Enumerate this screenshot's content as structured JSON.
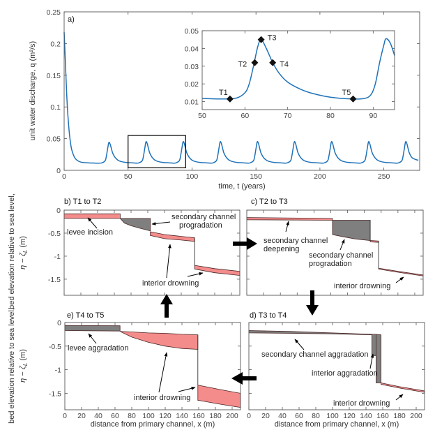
{
  "colors": {
    "series": "#1f72b8",
    "drowning_fill": "#f48c8c",
    "aggradation_fill": "#7f7f7f",
    "outline": "#4a2626",
    "arrow": "#000000"
  },
  "y_label_lower": {
    "line1": "bed elevation relative to sea level,",
    "line2": "η − ζ",
    "sub": "L",
    "unit": " (m)"
  },
  "chart_data": [
    {
      "type": "line",
      "panel": "a)",
      "xlabel": "time, t (years)",
      "ylabel": "unit water discharge, q (m²/s)",
      "xlim": [
        0,
        278
      ],
      "ylim": [
        0,
        0.25
      ],
      "grid": false,
      "xticks": [
        0,
        50,
        100,
        150,
        200,
        250
      ],
      "xticklabels": [
        "0",
        "50",
        "100",
        "150",
        "200",
        "250"
      ],
      "yticks": [
        0,
        0.05,
        0.1,
        0.15,
        0.2,
        0.25
      ],
      "yticklabels": [
        "0",
        "0.05",
        "0.1",
        "0.15",
        "0.2",
        "0.25"
      ],
      "zoom_box": {
        "x": [
          50,
          95
        ],
        "y": [
          0.004,
          0.055
        ]
      },
      "points": [
        [
          0,
          0.218
        ],
        [
          1,
          0.17
        ],
        [
          2,
          0.12
        ],
        [
          3,
          0.085
        ],
        [
          4,
          0.06
        ],
        [
          5,
          0.043
        ],
        [
          6,
          0.032
        ],
        [
          8,
          0.021
        ],
        [
          10,
          0.016
        ],
        [
          13,
          0.013
        ],
        [
          17,
          0.012
        ],
        [
          22,
          0.0115
        ],
        [
          29,
          0.0115
        ],
        [
          32,
          0.015
        ],
        [
          33,
          0.022
        ],
        [
          34,
          0.034
        ],
        [
          35,
          0.044
        ],
        [
          36,
          0.041
        ],
        [
          37,
          0.034
        ],
        [
          38,
          0.027
        ],
        [
          40,
          0.02
        ],
        [
          43,
          0.015
        ],
        [
          48,
          0.0125
        ],
        [
          55,
          0.0116
        ],
        [
          58,
          0.0115
        ],
        [
          61,
          0.015
        ],
        [
          62,
          0.022
        ],
        [
          63,
          0.034
        ],
        [
          64,
          0.045
        ],
        [
          65,
          0.042
        ],
        [
          66,
          0.034
        ],
        [
          67,
          0.027
        ],
        [
          69,
          0.02
        ],
        [
          72,
          0.015
        ],
        [
          77,
          0.0125
        ],
        [
          84,
          0.0116
        ],
        [
          87,
          0.0115
        ],
        [
          90,
          0.015
        ],
        [
          91,
          0.022
        ],
        [
          92,
          0.034
        ],
        [
          93,
          0.045
        ],
        [
          94,
          0.042
        ],
        [
          95,
          0.034
        ],
        [
          96,
          0.027
        ],
        [
          98,
          0.02
        ],
        [
          101,
          0.015
        ],
        [
          106,
          0.0125
        ],
        [
          113,
          0.0116
        ],
        [
          116,
          0.0115
        ],
        [
          119,
          0.015
        ],
        [
          120,
          0.022
        ],
        [
          121,
          0.034
        ],
        [
          122,
          0.045
        ],
        [
          123,
          0.042
        ],
        [
          124,
          0.034
        ],
        [
          125,
          0.027
        ],
        [
          127,
          0.02
        ],
        [
          130,
          0.015
        ],
        [
          135,
          0.0125
        ],
        [
          142,
          0.0116
        ],
        [
          145,
          0.0115
        ],
        [
          148,
          0.015
        ],
        [
          149,
          0.022
        ],
        [
          150,
          0.034
        ],
        [
          151,
          0.045
        ],
        [
          152,
          0.042
        ],
        [
          153,
          0.034
        ],
        [
          154,
          0.027
        ],
        [
          156,
          0.02
        ],
        [
          159,
          0.015
        ],
        [
          164,
          0.0125
        ],
        [
          171,
          0.0116
        ],
        [
          174,
          0.0115
        ],
        [
          177,
          0.015
        ],
        [
          178,
          0.022
        ],
        [
          179,
          0.034
        ],
        [
          180,
          0.045
        ],
        [
          181,
          0.042
        ],
        [
          182,
          0.034
        ],
        [
          183,
          0.027
        ],
        [
          185,
          0.02
        ],
        [
          188,
          0.015
        ],
        [
          193,
          0.0125
        ],
        [
          200,
          0.0116
        ],
        [
          203,
          0.0115
        ],
        [
          206,
          0.015
        ],
        [
          207,
          0.022
        ],
        [
          208,
          0.034
        ],
        [
          209,
          0.045
        ],
        [
          210,
          0.042
        ],
        [
          211,
          0.034
        ],
        [
          212,
          0.027
        ],
        [
          214,
          0.02
        ],
        [
          217,
          0.015
        ],
        [
          222,
          0.0125
        ],
        [
          229,
          0.0116
        ],
        [
          232,
          0.0115
        ],
        [
          235,
          0.015
        ],
        [
          236,
          0.022
        ],
        [
          237,
          0.034
        ],
        [
          238,
          0.045
        ],
        [
          239,
          0.042
        ],
        [
          240,
          0.034
        ],
        [
          241,
          0.027
        ],
        [
          243,
          0.02
        ],
        [
          246,
          0.015
        ],
        [
          251,
          0.0125
        ],
        [
          258,
          0.0116
        ],
        [
          261,
          0.0115
        ],
        [
          264,
          0.015
        ],
        [
          265,
          0.022
        ],
        [
          266,
          0.034
        ],
        [
          267,
          0.045
        ],
        [
          268,
          0.042
        ],
        [
          269,
          0.034
        ],
        [
          270,
          0.027
        ],
        [
          272,
          0.02
        ],
        [
          275,
          0.017
        ],
        [
          277,
          0.016
        ]
      ]
    },
    {
      "type": "line",
      "panel": "inset",
      "xlim": [
        50,
        95
      ],
      "ylim": [
        0.0055,
        0.05
      ],
      "grid": false,
      "xticks": [
        50,
        60,
        70,
        80,
        90
      ],
      "xticklabels": [
        "50",
        "60",
        "70",
        "80",
        "90"
      ],
      "yticks": [
        0.01,
        0.02,
        0.03,
        0.04,
        0.05
      ],
      "yticklabels": [
        "0.01",
        "0.02",
        "0.03",
        "0.04",
        "0.05"
      ],
      "points": [
        [
          50,
          0.0118
        ],
        [
          55,
          0.0115
        ],
        [
          58,
          0.012
        ],
        [
          60,
          0.015
        ],
        [
          61,
          0.02
        ],
        [
          62,
          0.03
        ],
        [
          63,
          0.041
        ],
        [
          63.8,
          0.045
        ],
        [
          65,
          0.04
        ],
        [
          66.5,
          0.032
        ],
        [
          68,
          0.026
        ],
        [
          70,
          0.021
        ],
        [
          73,
          0.017
        ],
        [
          76,
          0.0145
        ],
        [
          80,
          0.0125
        ],
        [
          85,
          0.0115
        ],
        [
          88,
          0.0118
        ],
        [
          89.5,
          0.014
        ],
        [
          90.5,
          0.02
        ],
        [
          91.5,
          0.032
        ],
        [
          92.5,
          0.042
        ],
        [
          93,
          0.0455
        ],
        [
          94,
          0.043
        ],
        [
          95,
          0.036
        ]
      ],
      "markers": [
        {
          "label": "T1",
          "x": 56.5,
          "y": 0.0115
        },
        {
          "label": "T2",
          "x": 62.3,
          "y": 0.032
        },
        {
          "label": "T3",
          "x": 63.8,
          "y": 0.045
        },
        {
          "label": "T4",
          "x": 66.5,
          "y": 0.032
        },
        {
          "label": "T5",
          "x": 85.3,
          "y": 0.0115
        }
      ]
    },
    {
      "type": "area",
      "panel": "b) T1 to T2",
      "xlim": [
        0,
        210
      ],
      "ylim": [
        -1.85,
        0
      ],
      "grid": false,
      "xticks": [
        0,
        20,
        40,
        60,
        80,
        100,
        120,
        140,
        160,
        180,
        200
      ],
      "xticklabels": [],
      "yticks": [
        0,
        -0.5,
        -1,
        -1.5
      ],
      "yticklabels": [
        "0",
        "-0.5",
        "-1",
        "-1.5"
      ],
      "fills": [
        {
          "kind": "drowning",
          "x": [
            0,
            67
          ],
          "top": [
            -0.08,
            -0.08
          ],
          "bottom": [
            -0.18,
            -0.18
          ]
        },
        {
          "kind": "aggradation",
          "x": [
            67,
            72,
            80,
            90,
            103
          ],
          "top": [
            -0.18,
            -0.18,
            -0.18,
            -0.18,
            -0.18
          ],
          "bottom": [
            -0.18,
            -0.28,
            -0.34,
            -0.39,
            -0.45
          ]
        },
        {
          "kind": "drowning",
          "x": [
            103,
            120,
            140,
            156
          ],
          "top": [
            -0.47,
            -0.53,
            -0.57,
            -0.6
          ],
          "bottom": [
            -0.55,
            -0.62,
            -0.65,
            -0.68
          ]
        },
        {
          "kind": "drowning",
          "x": [
            156,
            180,
            210
          ],
          "top": [
            -1.2,
            -1.27,
            -1.33
          ],
          "bottom": [
            -1.28,
            -1.36,
            -1.42
          ]
        }
      ],
      "lines": [
        {
          "x": [
            156,
            156
          ],
          "y": [
            -0.6,
            -1.2
          ]
        }
      ],
      "annotations": [
        "levee incision",
        "secondary channel",
        "progradation",
        "interior drowning"
      ]
    },
    {
      "type": "area",
      "panel": "c) T2 to T3",
      "xlim": [
        0,
        210
      ],
      "ylim": [
        -1.85,
        0
      ],
      "grid": false,
      "xticks": [
        0,
        20,
        40,
        60,
        80,
        100,
        120,
        140,
        160,
        180,
        200
      ],
      "xticklabels": [],
      "yticks": [
        0,
        -0.5,
        -1,
        -1.5
      ],
      "yticklabels": [],
      "fills": [
        {
          "kind": "drowning",
          "x": [
            0,
            102
          ],
          "top": [
            -0.16,
            -0.18
          ],
          "bottom": [
            -0.21,
            -0.22
          ]
        },
        {
          "kind": "aggradation",
          "x": [
            102,
            102.1,
            115,
            130,
            147
          ],
          "top": [
            -0.22,
            -0.22,
            -0.22,
            -0.22,
            -0.22
          ],
          "bottom": [
            -0.22,
            -0.53,
            -0.58,
            -0.63,
            -0.66
          ]
        },
        {
          "kind": "drowning",
          "x": [
            147,
            157
          ],
          "top": [
            -0.66,
            -0.67
          ],
          "bottom": [
            -0.69,
            -0.7
          ]
        },
        {
          "kind": "drowning",
          "x": [
            157,
            180,
            210
          ],
          "top": [
            -1.26,
            -1.33,
            -1.41
          ],
          "bottom": [
            -1.28,
            -1.35,
            -1.43
          ]
        }
      ],
      "lines": [
        {
          "x": [
            147,
            147
          ],
          "y": [
            -0.22,
            -0.66
          ]
        },
        {
          "x": [
            157,
            157
          ],
          "y": [
            -0.67,
            -1.26
          ]
        }
      ],
      "annotations": [
        "secondary channel",
        "deepening",
        "secondary channel",
        "progradation",
        "interior drowning"
      ]
    },
    {
      "type": "area",
      "panel": "e) T4 to T5",
      "xlabel": "distance from primary channel, x (m)",
      "xlim": [
        0,
        210
      ],
      "ylim": [
        -1.85,
        0
      ],
      "grid": false,
      "xticks": [
        0,
        20,
        40,
        60,
        80,
        100,
        120,
        140,
        160,
        180,
        200
      ],
      "xticklabels": [
        "0",
        "20",
        "40",
        "60",
        "80",
        "100",
        "120",
        "140",
        "160",
        "180",
        "200"
      ],
      "yticks": [
        0,
        -0.5,
        -1,
        -1.5
      ],
      "yticklabels": [
        "0",
        "-0.5",
        "-1",
        "-1.5"
      ],
      "fills": [
        {
          "kind": "aggradation",
          "x": [
            0,
            66
          ],
          "top": [
            -0.06,
            -0.07
          ],
          "bottom": [
            -0.17,
            -0.18
          ]
        },
        {
          "kind": "drowning",
          "x": [
            66,
            80,
            100,
            120,
            140,
            159
          ],
          "top": [
            -0.19,
            -0.2,
            -0.22,
            -0.23,
            -0.25,
            -0.26
          ],
          "bottom": [
            -0.19,
            -0.31,
            -0.42,
            -0.5,
            -0.55,
            -0.57
          ]
        },
        {
          "kind": "drowning",
          "x": [
            159,
            160,
            185,
            210
          ],
          "top": [
            -1.33,
            -1.33,
            -1.42,
            -1.5
          ],
          "bottom": [
            -1.65,
            -1.65,
            -1.73,
            -1.8
          ]
        }
      ],
      "lines": [
        {
          "x": [
            159,
            159
          ],
          "y": [
            -0.26,
            -1.33
          ]
        }
      ],
      "annotations": [
        "levee aggradation",
        "interior drowning"
      ]
    },
    {
      "type": "area",
      "panel": "d) T3 to T4",
      "xlabel": "distance from primary channel, x (m)",
      "xlim": [
        0,
        210
      ],
      "ylim": [
        -1.85,
        0
      ],
      "grid": false,
      "xticks": [
        0,
        20,
        40,
        60,
        80,
        100,
        120,
        140,
        160,
        180,
        200
      ],
      "xticklabels": [
        "0",
        "20",
        "40",
        "60",
        "80",
        "100",
        "120",
        "140",
        "160",
        "180",
        "200"
      ],
      "yticks": [
        0,
        -0.5,
        -1,
        -1.5
      ],
      "yticklabels": [],
      "fills": [
        {
          "kind": "aggradation",
          "x": [
            0,
            50,
            100,
            147
          ],
          "top": [
            -0.17,
            -0.19,
            -0.22,
            -0.25
          ],
          "bottom": [
            -0.22,
            -0.23,
            -0.24,
            -0.26
          ]
        },
        {
          "kind": "aggradation",
          "x": [
            147,
            152
          ],
          "top": [
            -0.25,
            -0.25
          ],
          "bottom": [
            -0.7,
            -0.7
          ]
        },
        {
          "kind": "aggradation",
          "x": [
            152,
            158
          ],
          "top": [
            -0.25,
            -0.26
          ],
          "bottom": [
            -1.28,
            -1.28
          ]
        },
        {
          "kind": "drowning",
          "x": [
            158,
            180,
            210
          ],
          "top": [
            -1.28,
            -1.36,
            -1.45
          ],
          "bottom": [
            -1.31,
            -1.39,
            -1.48
          ]
        }
      ],
      "lines": [],
      "annotations": [
        "secondary channel aggradation",
        "interior aggradation",
        "interior drowning"
      ]
    }
  ]
}
